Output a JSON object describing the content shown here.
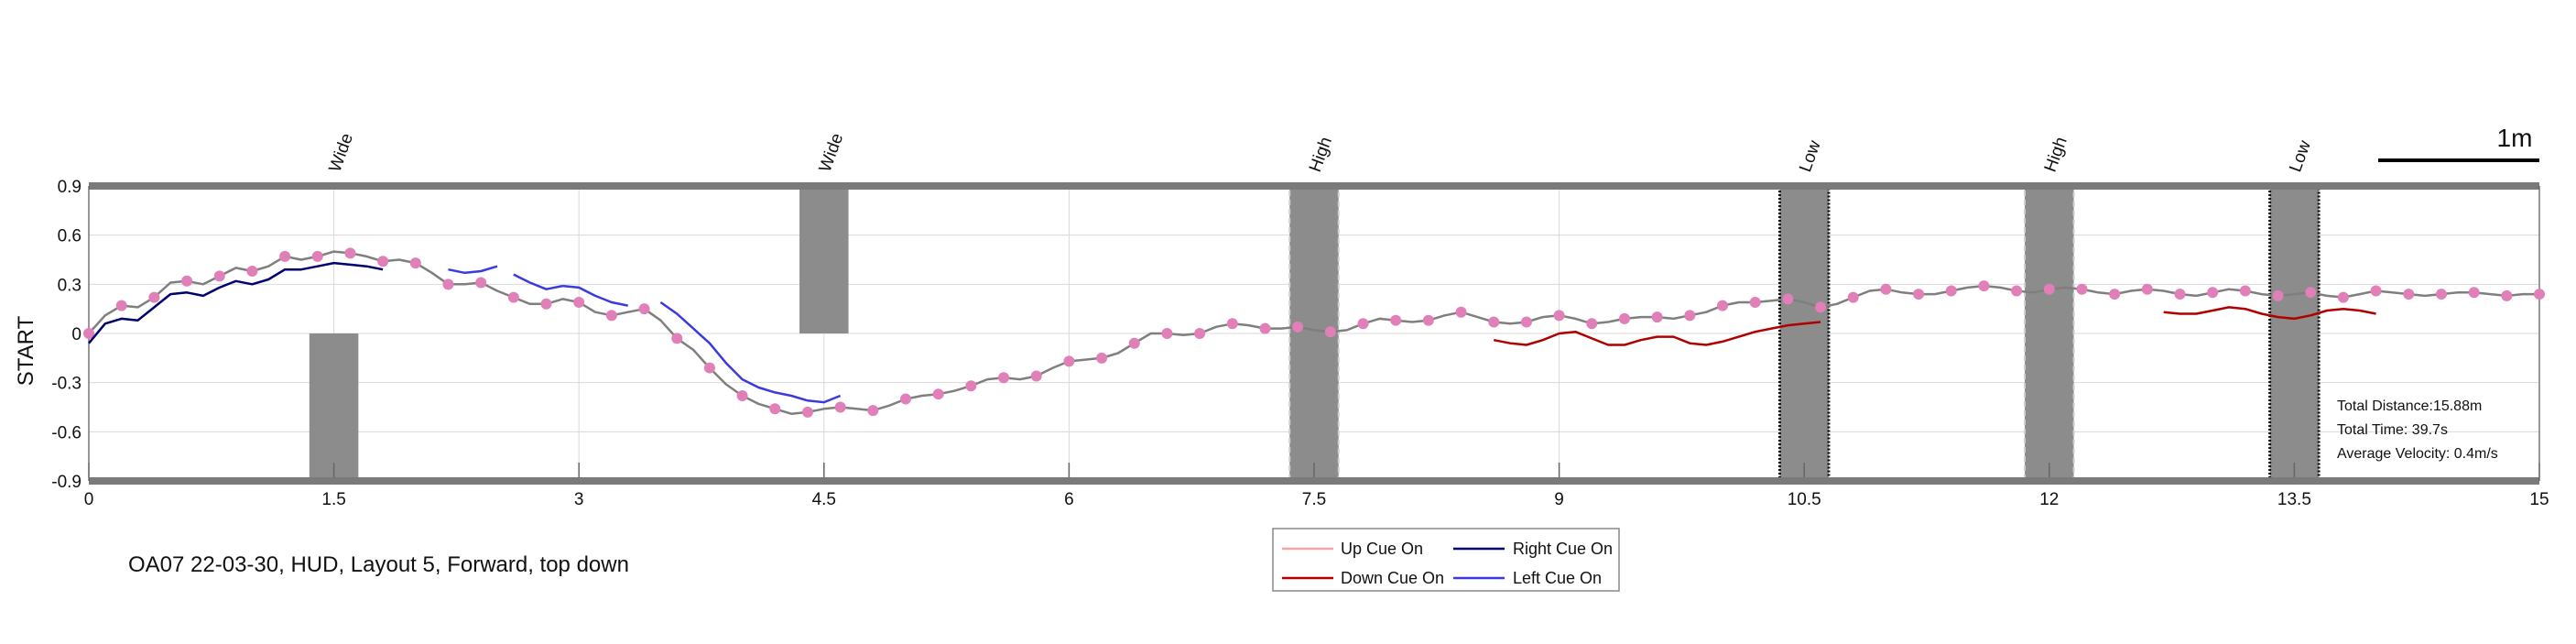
{
  "caption": "OA07 22-03-30, HUD, Layout 5, Forward, top down",
  "scale_bar_label": "1m",
  "info": {
    "total_distance": "Total Distance:15.88m",
    "total_time": "Total Time: 39.7s",
    "average_velocity": "Average Velocity: 0.4m/s"
  },
  "colors": {
    "path": "#7f7f7f",
    "markers": "#e07fb8",
    "obstacle": "#8c8c8c",
    "frame": "#7a7a7a",
    "grid": "#d9d9d9",
    "up_cue": "#f4a3a8",
    "down_cue": "#b00000",
    "right_cue": "#000070",
    "left_cue": "#3a3ae0"
  },
  "chart_data": {
    "type": "line",
    "title": "",
    "xlabel": "",
    "ylabel": "START",
    "xlim": [
      0,
      15
    ],
    "ylim": [
      -0.9,
      0.9
    ],
    "xticks": [
      "0",
      "1.5",
      "3",
      "4.5",
      "6",
      "7.5",
      "9",
      "10.5",
      "12",
      "13.5",
      "15"
    ],
    "yticks": [
      "0.9",
      "0.6",
      "0.3",
      "0",
      "-0.3",
      "-0.6",
      "-0.9"
    ],
    "xtick_values": [
      0,
      1.5,
      3,
      4.5,
      6,
      7.5,
      9,
      10.5,
      12,
      13.5,
      15
    ],
    "ytick_values": [
      0.9,
      0.6,
      0.3,
      0,
      -0.3,
      -0.6,
      -0.9
    ],
    "grid": true,
    "legend_position": "bottom-center",
    "legend": [
      {
        "label": "Up Cue On",
        "color": "#f4a3a8"
      },
      {
        "label": "Right Cue On",
        "color": "#000070"
      },
      {
        "label": "Down Cue On",
        "color": "#b00000"
      },
      {
        "label": "Left Cue On",
        "color": "#3a3ae0"
      }
    ],
    "obstacles": [
      {
        "label": "",
        "x": [
          1.35,
          1.65
        ],
        "y": [
          -0.9,
          0.0
        ],
        "style": "solid"
      },
      {
        "label": "Wide",
        "x": [
          4.35,
          4.65
        ],
        "y": [
          0.0,
          0.9
        ],
        "style": "solid"
      },
      {
        "label": "High",
        "x": [
          7.35,
          7.65
        ],
        "y": [
          -0.9,
          0.9
        ],
        "style": "dashed-light"
      },
      {
        "label": "Low",
        "x": [
          10.35,
          10.65
        ],
        "y": [
          -0.9,
          0.9
        ],
        "style": "dotted-dark"
      },
      {
        "label": "High",
        "x": [
          11.85,
          12.15
        ],
        "y": [
          -0.9,
          0.9
        ],
        "style": "dashed-light"
      },
      {
        "label": "Low",
        "x": [
          13.35,
          13.65
        ],
        "y": [
          -0.9,
          0.9
        ],
        "style": "dotted-dark"
      }
    ],
    "top_labels": [
      {
        "label": "Wide",
        "x": 1.5
      },
      {
        "label": "Wide",
        "x": 4.5
      },
      {
        "label": "High",
        "x": 7.5
      },
      {
        "label": "Low",
        "x": 10.5
      },
      {
        "label": "High",
        "x": 12
      },
      {
        "label": "Low",
        "x": 13.5
      }
    ],
    "series": [
      {
        "name": "",
        "role": "path",
        "x": [
          0.0,
          0.1,
          0.2,
          0.3,
          0.4,
          0.5,
          0.6,
          0.7,
          0.8,
          0.9,
          1.0,
          1.1,
          1.2,
          1.3,
          1.4,
          1.5,
          1.6,
          1.7,
          1.8,
          1.9,
          2.0,
          2.1,
          2.2,
          2.3,
          2.4,
          2.5,
          2.6,
          2.7,
          2.8,
          2.9,
          3.0,
          3.1,
          3.2,
          3.3,
          3.4,
          3.5,
          3.6,
          3.7,
          3.8,
          3.9,
          4.0,
          4.1,
          4.2,
          4.3,
          4.4,
          4.5,
          4.6,
          4.7,
          4.8,
          4.9,
          5.0,
          5.1,
          5.2,
          5.3,
          5.4,
          5.5,
          5.6,
          5.7,
          5.8,
          5.9,
          6.0,
          6.1,
          6.2,
          6.3,
          6.4,
          6.5,
          6.6,
          6.7,
          6.8,
          6.9,
          7.0,
          7.1,
          7.2,
          7.3,
          7.4,
          7.5,
          7.6,
          7.7,
          7.8,
          7.9,
          8.0,
          8.1,
          8.2,
          8.3,
          8.4,
          8.5,
          8.6,
          8.7,
          8.8,
          8.9,
          9.0,
          9.1,
          9.2,
          9.3,
          9.4,
          9.5,
          9.6,
          9.7,
          9.8,
          9.9,
          10.0,
          10.1,
          10.2,
          10.3,
          10.4,
          10.5,
          10.6,
          10.7,
          10.8,
          10.9,
          11.0,
          11.1,
          11.2,
          11.3,
          11.4,
          11.5,
          11.6,
          11.7,
          11.8,
          11.9,
          12.0,
          12.1,
          12.2,
          12.3,
          12.4,
          12.5,
          12.6,
          12.7,
          12.8,
          12.9,
          13.0,
          13.1,
          13.2,
          13.3,
          13.4,
          13.5,
          13.6,
          13.7,
          13.8,
          13.9,
          14.0,
          14.1,
          14.2,
          14.3,
          14.4,
          14.5,
          14.6,
          14.7,
          14.8,
          14.9,
          15.0
        ],
        "y": [
          0.0,
          0.11,
          0.17,
          0.16,
          0.22,
          0.31,
          0.32,
          0.3,
          0.35,
          0.4,
          0.38,
          0.41,
          0.47,
          0.45,
          0.47,
          0.5,
          0.49,
          0.47,
          0.44,
          0.45,
          0.43,
          0.37,
          0.3,
          0.3,
          0.31,
          0.26,
          0.22,
          0.18,
          0.18,
          0.21,
          0.19,
          0.13,
          0.11,
          0.13,
          0.15,
          0.08,
          -0.03,
          -0.1,
          -0.21,
          -0.31,
          -0.38,
          -0.43,
          -0.46,
          -0.49,
          -0.48,
          -0.46,
          -0.45,
          -0.46,
          -0.47,
          -0.44,
          -0.4,
          -0.38,
          -0.37,
          -0.35,
          -0.32,
          -0.28,
          -0.27,
          -0.28,
          -0.26,
          -0.21,
          -0.17,
          -0.16,
          -0.15,
          -0.12,
          -0.06,
          0.0,
          0.0,
          -0.01,
          0.0,
          0.04,
          0.06,
          0.05,
          0.03,
          0.03,
          0.04,
          0.02,
          0.01,
          0.02,
          0.06,
          0.09,
          0.08,
          0.07,
          0.08,
          0.11,
          0.13,
          0.1,
          0.07,
          0.06,
          0.07,
          0.1,
          0.11,
          0.09,
          0.06,
          0.07,
          0.09,
          0.1,
          0.1,
          0.09,
          0.11,
          0.13,
          0.17,
          0.19,
          0.19,
          0.2,
          0.21,
          0.19,
          0.16,
          0.18,
          0.22,
          0.26,
          0.27,
          0.25,
          0.24,
          0.24,
          0.26,
          0.28,
          0.29,
          0.28,
          0.26,
          0.25,
          0.27,
          0.28,
          0.27,
          0.25,
          0.24,
          0.26,
          0.27,
          0.26,
          0.24,
          0.23,
          0.25,
          0.27,
          0.26,
          0.24,
          0.23,
          0.24,
          0.25,
          0.23,
          0.22,
          0.24,
          0.26,
          0.25,
          0.24,
          0.23,
          0.24,
          0.25,
          0.25,
          0.24,
          0.23,
          0.24,
          0.24
        ]
      },
      {
        "name": "Right Cue On",
        "role": "cue",
        "color": "#000070",
        "x": [
          0.0,
          0.1,
          0.2,
          0.3,
          0.4,
          0.5,
          0.6,
          0.7,
          0.8,
          0.9,
          1.0,
          1.1,
          1.2,
          1.3,
          1.4,
          1.5,
          1.6,
          1.7,
          1.8
        ],
        "y": [
          -0.06,
          0.06,
          0.09,
          0.08,
          0.16,
          0.24,
          0.25,
          0.23,
          0.28,
          0.32,
          0.3,
          0.33,
          0.39,
          0.39,
          0.41,
          0.43,
          0.42,
          0.41,
          0.39
        ]
      },
      {
        "name": "Left Cue On",
        "role": "cue",
        "color": "#3a3ae0",
        "segments": [
          {
            "x": [
              2.2,
              2.3,
              2.4,
              2.5
            ],
            "y": [
              0.39,
              0.37,
              0.38,
              0.41
            ]
          },
          {
            "x": [
              2.6,
              2.7,
              2.8,
              2.9
            ],
            "y": [
              0.36,
              0.31,
              0.27,
              0.29
            ]
          },
          {
            "x": [
              2.9,
              3.0,
              3.1,
              3.2,
              3.3
            ],
            "y": [
              0.29,
              0.28,
              0.23,
              0.19,
              0.17
            ]
          },
          {
            "x": [
              3.5,
              3.6,
              3.7,
              3.8,
              3.9,
              4.0,
              4.1,
              4.2,
              4.3,
              4.4,
              4.5,
              4.6
            ],
            "y": [
              0.19,
              0.12,
              0.03,
              -0.06,
              -0.18,
              -0.28,
              -0.33,
              -0.36,
              -0.38,
              -0.41,
              -0.42,
              -0.38
            ]
          }
        ]
      },
      {
        "name": "Down Cue On",
        "role": "cue",
        "color": "#b00000",
        "segments": [
          {
            "x": [
              8.6,
              8.7,
              8.8,
              8.9,
              9.0,
              9.1,
              9.2,
              9.3,
              9.4,
              9.5,
              9.6,
              9.7,
              9.8,
              9.9,
              10.0,
              10.1,
              10.2,
              10.3,
              10.4,
              10.5,
              10.6
            ],
            "y": [
              -0.04,
              -0.06,
              -0.07,
              -0.04,
              0.0,
              0.01,
              -0.03,
              -0.07,
              -0.07,
              -0.04,
              -0.02,
              -0.02,
              -0.06,
              -0.07,
              -0.05,
              -0.02,
              0.01,
              0.03,
              0.05,
              0.06,
              0.07
            ]
          },
          {
            "x": [
              12.7,
              12.8,
              12.9,
              13.0,
              13.1,
              13.2,
              13.3,
              13.4,
              13.5,
              13.6,
              13.7,
              13.8,
              13.9,
              14.0
            ],
            "y": [
              0.13,
              0.12,
              0.12,
              0.14,
              0.16,
              0.15,
              0.12,
              0.1,
              0.09,
              0.11,
              0.14,
              0.15,
              0.14,
              0.12
            ]
          }
        ]
      },
      {
        "name": "Up Cue On",
        "role": "cue",
        "color": "#f4a3a8",
        "x": [],
        "y": []
      }
    ]
  }
}
